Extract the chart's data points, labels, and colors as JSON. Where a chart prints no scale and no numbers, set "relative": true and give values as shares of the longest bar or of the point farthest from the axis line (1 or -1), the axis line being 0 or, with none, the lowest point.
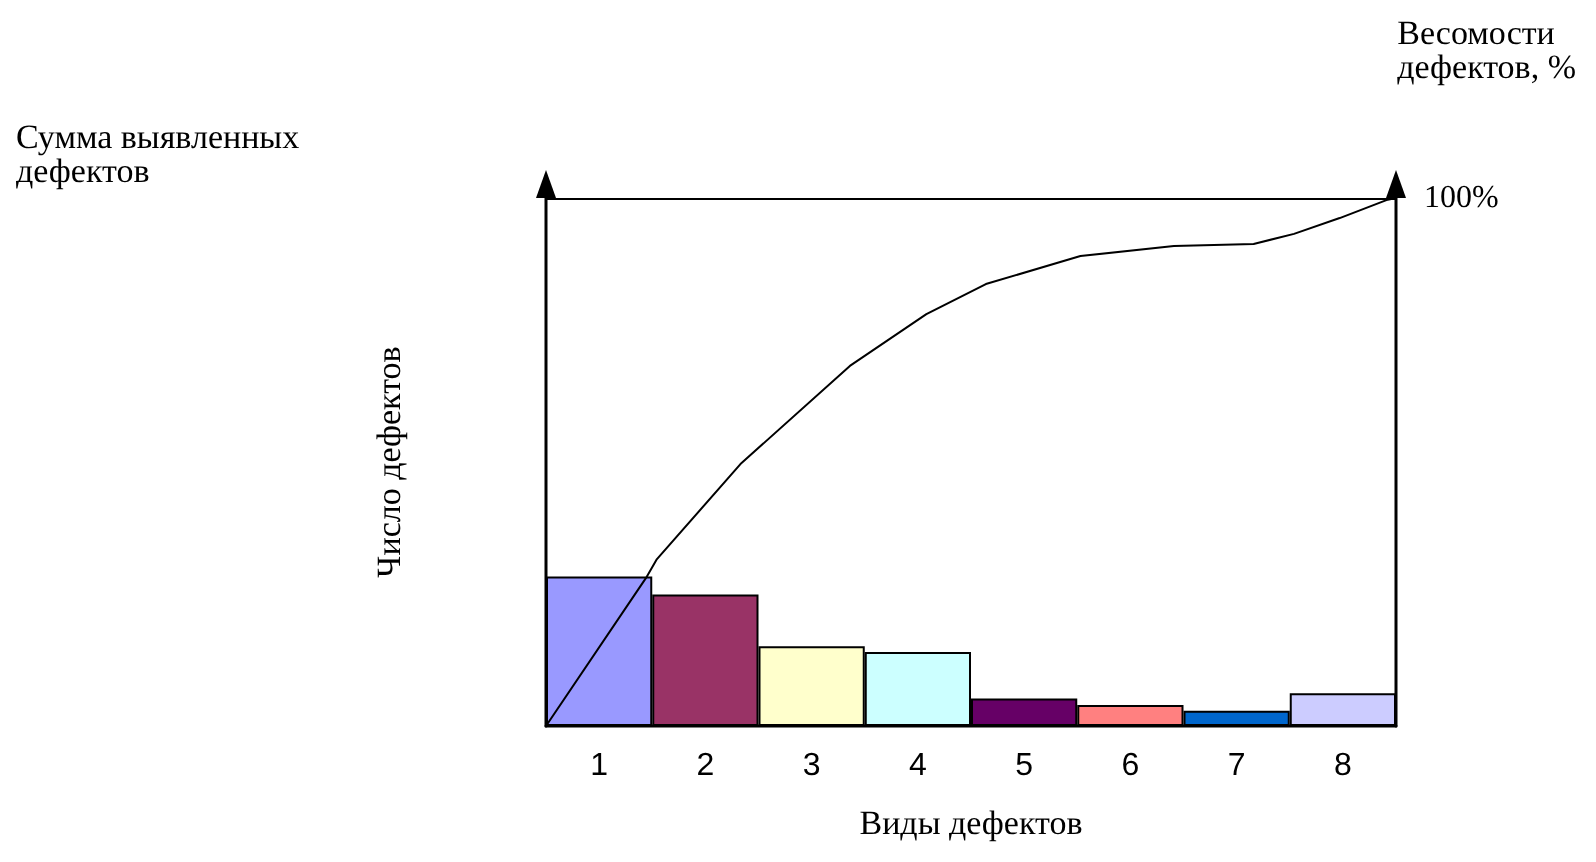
{
  "chart_data": {
    "type": "bar",
    "relative": true,
    "xlabel": "Виды дефектов",
    "ylabel": "Число дефектов",
    "annotations": [
      "Сумма выявленных дефектов",
      "Весомости дефектов, %"
    ],
    "x": [
      1,
      2,
      3,
      4,
      5,
      6,
      7,
      8
    ],
    "xlim": [
      0.5,
      8.5
    ],
    "xticks": [
      1,
      2,
      3,
      4,
      5,
      6,
      7,
      8
    ],
    "series": [
      {
        "values": [
          0.283,
          0.249,
          0.151,
          0.14,
          0.052,
          0.04,
          0.029,
          0.062
        ],
        "colors": [
          "#9999ff",
          "#993366",
          "#ffffcc",
          "#ccffff",
          "#660066",
          "#ff8080",
          "#0066cc",
          "#ccccff"
        ]
      },
      {
        "type": "line",
        "color": "#000000",
        "x": [
          0.5,
          1.44,
          1.54,
          2.33,
          3.36,
          4.08,
          4.64,
          5.53,
          6.41,
          7.16,
          7.54,
          7.97,
          8.41,
          8.5
        ],
        "values": [
          0,
          0.28,
          0.315,
          0.496,
          0.682,
          0.78,
          0.837,
          0.89,
          0.909,
          0.913,
          0.932,
          0.962,
          0.996,
          1
        ]
      }
    ],
    "ref_lines": [
      {
        "axis": "y",
        "value": 1,
        "label": "100%",
        "color": "#000000"
      }
    ],
    "grid": false,
    "marker": "none",
    "line_style": "solid"
  }
}
